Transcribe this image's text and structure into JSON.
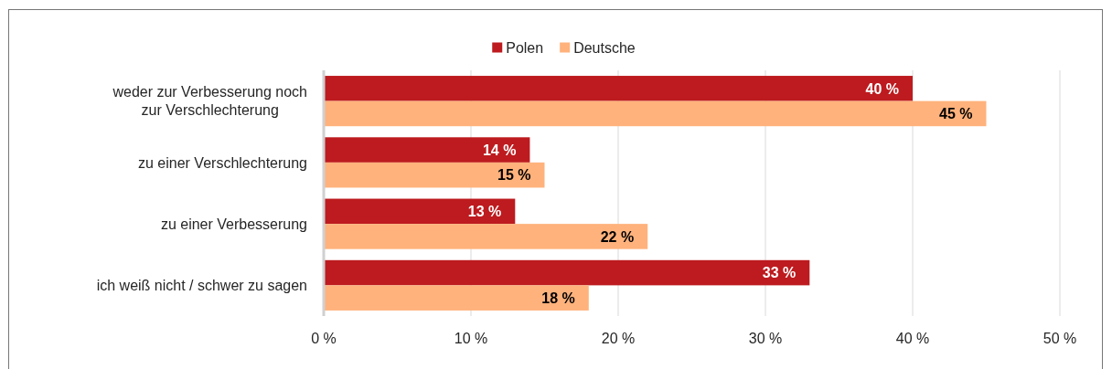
{
  "chart_data": {
    "type": "bar",
    "orientation": "horizontal",
    "categories": [
      "weder zur Verbesserung noch zur Verschlechterung",
      "zu einer Verschlechterung",
      "zu einer Verbesserung",
      "ich weiß nicht / schwer zu sagen"
    ],
    "series": [
      {
        "name": "Polen",
        "color": "#bd1b1f",
        "values": [
          40,
          14,
          13,
          33
        ],
        "value_labels": [
          "40 %",
          "14 %",
          "13 %",
          "33 %"
        ]
      },
      {
        "name": "Deutsche",
        "color": "#ffb27c",
        "values": [
          45,
          15,
          22,
          18
        ],
        "value_labels": [
          "45 %",
          "15 %",
          "22 %",
          "18 %"
        ]
      }
    ],
    "xlim": [
      0,
      50
    ],
    "xticks": [
      {
        "value": 0,
        "label": "0 %"
      },
      {
        "value": 10,
        "label": "10 %"
      },
      {
        "value": 20,
        "label": "20 %"
      },
      {
        "value": 30,
        "label": "30 %"
      },
      {
        "value": 40,
        "label": "40 %"
      },
      {
        "value": 50,
        "label": "50 %"
      }
    ],
    "grid": "x",
    "legend": "top"
  }
}
